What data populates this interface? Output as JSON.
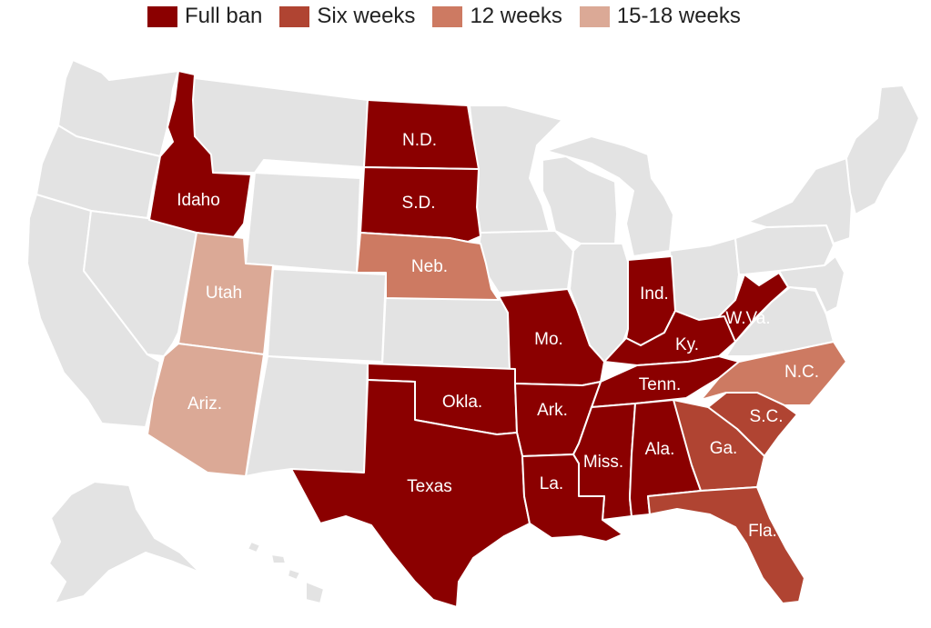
{
  "legend": [
    {
      "label": "Full ban",
      "color": "#8b0000",
      "category": "full_ban"
    },
    {
      "label": "Six weeks",
      "color": "#b04432",
      "category": "six_weeks"
    },
    {
      "label": "12 weeks",
      "color": "#cd7a62",
      "category": "twelve_weeks"
    },
    {
      "label": "15-18 weeks",
      "color": "#dba996",
      "category": "fifteen_eighteen_weeks"
    }
  ],
  "no_restriction_color": "#e3e3e3",
  "states": [
    {
      "label": "Idaho",
      "category": "full_ban"
    },
    {
      "label": "N.D.",
      "category": "full_ban"
    },
    {
      "label": "S.D.",
      "category": "full_ban"
    },
    {
      "label": "Neb.",
      "category": "twelve_weeks"
    },
    {
      "label": "Utah",
      "category": "fifteen_eighteen_weeks"
    },
    {
      "label": "Ariz.",
      "category": "fifteen_eighteen_weeks"
    },
    {
      "label": "Mo.",
      "category": "full_ban"
    },
    {
      "label": "Ind.",
      "category": "full_ban"
    },
    {
      "label": "W.Va.",
      "category": "full_ban"
    },
    {
      "label": "Ky.",
      "category": "full_ban"
    },
    {
      "label": "Tenn.",
      "category": "full_ban"
    },
    {
      "label": "N.C.",
      "category": "twelve_weeks"
    },
    {
      "label": "Okla.",
      "category": "full_ban"
    },
    {
      "label": "Ark.",
      "category": "full_ban"
    },
    {
      "label": "S.C.",
      "category": "six_weeks"
    },
    {
      "label": "Ga.",
      "category": "six_weeks"
    },
    {
      "label": "Texas",
      "category": "full_ban"
    },
    {
      "label": "Miss.",
      "category": "full_ban"
    },
    {
      "label": "Ala.",
      "category": "full_ban"
    },
    {
      "label": "La.",
      "category": "full_ban"
    },
    {
      "label": "Fla.",
      "category": "six_weeks"
    }
  ]
}
